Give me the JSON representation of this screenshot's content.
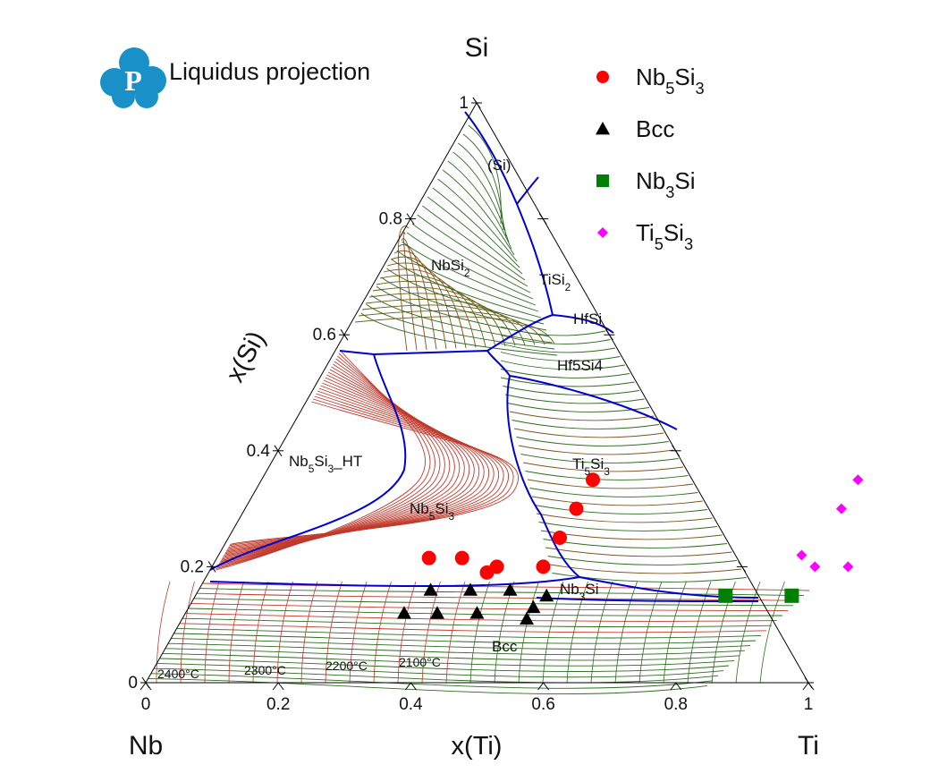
{
  "chart_data": {
    "type": "ternary-scatter",
    "title": "Liquidus projection",
    "corners": {
      "top": "Si",
      "left": "Nb",
      "right": "Ti"
    },
    "axes": {
      "xlabel": "x(Ti)",
      "ylabel": "x(Si)",
      "x_ticks": [
        "0",
        "0.2",
        "0.4",
        "0.6",
        "0.8",
        "1"
      ],
      "y_ticks": [
        "0",
        "0.2",
        "0.4",
        "0.6",
        "0.8",
        "1"
      ],
      "x_range": [
        0,
        1
      ],
      "y_range": [
        0,
        1
      ]
    },
    "series": [
      {
        "name": "Nb5Si3",
        "base": "Nb",
        "sub1": "5",
        "mid": "Si",
        "sub2": "3",
        "color": "#ff0000",
        "marker": "circle",
        "points": [
          [
            0.5,
            0.35
          ],
          [
            0.5,
            0.3
          ],
          [
            0.5,
            0.25
          ],
          [
            0.5,
            0.2
          ],
          [
            0.43,
            0.2
          ],
          [
            0.42,
            0.19
          ],
          [
            0.37,
            0.215
          ],
          [
            0.32,
            0.215
          ]
        ]
      },
      {
        "name": "Bcc",
        "base": "Bcc",
        "sub1": "",
        "mid": "",
        "sub2": "",
        "color": "#000000",
        "marker": "triangle",
        "points": [
          [
            0.35,
            0.16
          ],
          [
            0.41,
            0.16
          ],
          [
            0.47,
            0.16
          ],
          [
            0.53,
            0.15
          ],
          [
            0.33,
            0.12
          ],
          [
            0.38,
            0.12
          ],
          [
            0.44,
            0.12
          ],
          [
            0.52,
            0.13
          ],
          [
            0.52,
            0.11
          ]
        ]
      },
      {
        "name": "Nb3Si",
        "base": "Nb",
        "sub1": "3",
        "mid": "Si",
        "sub2": "",
        "color": "#008000",
        "marker": "square",
        "points": [
          [
            0.8,
            0.15
          ],
          [
            0.9,
            0.15
          ]
        ]
      },
      {
        "name": "Ti5Si3",
        "base": "Ti",
        "sub1": "5",
        "mid": "Si",
        "sub2": "3",
        "color": "#ff00ff",
        "marker": "diamond",
        "points": [
          [
            0.9,
            0.35
          ],
          [
            0.9,
            0.3
          ],
          [
            0.88,
            0.22
          ],
          [
            0.91,
            0.2
          ],
          [
            0.96,
            0.2
          ]
        ]
      }
    ],
    "phase_labels": [
      {
        "base": "(Si)",
        "sub": "",
        "tail": ""
      },
      {
        "base": "NbSi",
        "sub": "2",
        "tail": ""
      },
      {
        "base": "TiSi",
        "sub": "2",
        "tail": ""
      },
      {
        "base": "HfSi",
        "sub": "",
        "tail": ""
      },
      {
        "base": "Hf5Si4",
        "sub": "",
        "tail": ""
      },
      {
        "base": "Nb",
        "sub": "5",
        "tail": "Si",
        "sub2": "3",
        "tail2": "_HT"
      },
      {
        "base": "Nb",
        "sub": "5",
        "tail": "Si",
        "sub2": "3",
        "tail2": ""
      },
      {
        "base": "Ti",
        "sub": "5",
        "tail": "Si",
        "sub2": "3",
        "tail2": ""
      },
      {
        "base": "Nb",
        "sub": "3",
        "tail": "Si",
        "sub2": "",
        "tail2": ""
      },
      {
        "base": "Bcc",
        "sub": "",
        "tail": ""
      }
    ],
    "temperature_labels": [
      "2400°C",
      "2300°C",
      "2200°C",
      "2100°C"
    ],
    "legend_position": "top-right",
    "colors": {
      "boundary": "#0000d0",
      "hot_isotherm": "#c0392b",
      "cool_isotherm": "#2e6b1f",
      "logo": "#1a90c8"
    }
  }
}
